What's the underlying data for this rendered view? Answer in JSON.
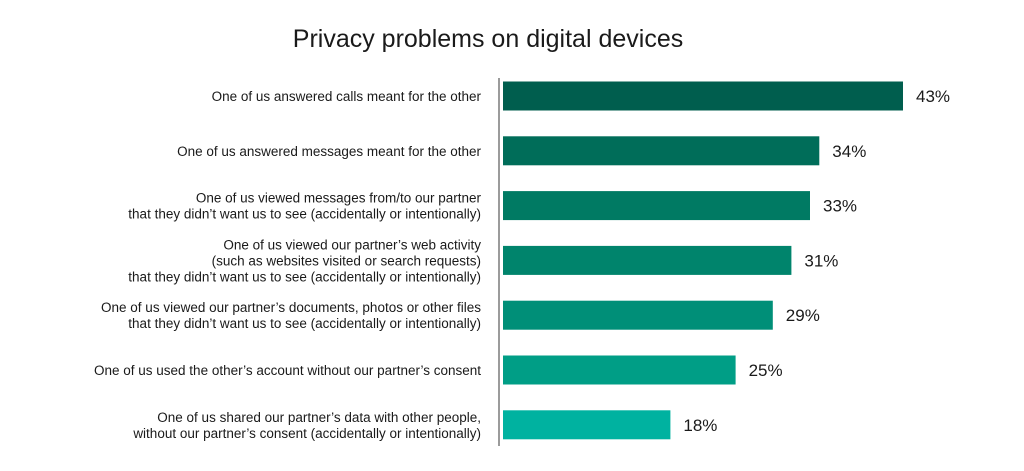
{
  "chart_data": {
    "type": "bar",
    "orientation": "horizontal",
    "title": "Privacy problems on digital devices",
    "categories": [
      [
        "One of us answered calls meant for the other"
      ],
      [
        "One of us answered messages meant for the other"
      ],
      [
        "One of us viewed messages from/to our partner",
        "that they didn’t want us to see (accidentally or intentionally)"
      ],
      [
        "One of us viewed our partner’s web activity",
        "(such as websites visited or search requests)",
        "that they didn’t want us to see (accidentally or intentionally)"
      ],
      [
        "One of us viewed our partner’s documents, photos or other files",
        "that they didn’t want us to see (accidentally or intentionally)"
      ],
      [
        "One of us used the other’s account without our partner’s consent"
      ],
      [
        "One of us shared our partner’s data with other people,",
        "without our partner’s consent (accidentally or intentionally)"
      ]
    ],
    "values": [
      43,
      34,
      33,
      31,
      29,
      25,
      18
    ],
    "value_labels": [
      "43%",
      "34%",
      "33%",
      "31%",
      "29%",
      "25%",
      "18%"
    ],
    "unit": "%",
    "xlim": [
      0,
      43
    ],
    "grid": false,
    "legend": "none",
    "bar_colors": [
      "#005e4e",
      "#006d59",
      "#007a63",
      "#00846c",
      "#008f78",
      "#009e86",
      "#00b2a0"
    ],
    "axis_color": "#7a7a7a"
  }
}
